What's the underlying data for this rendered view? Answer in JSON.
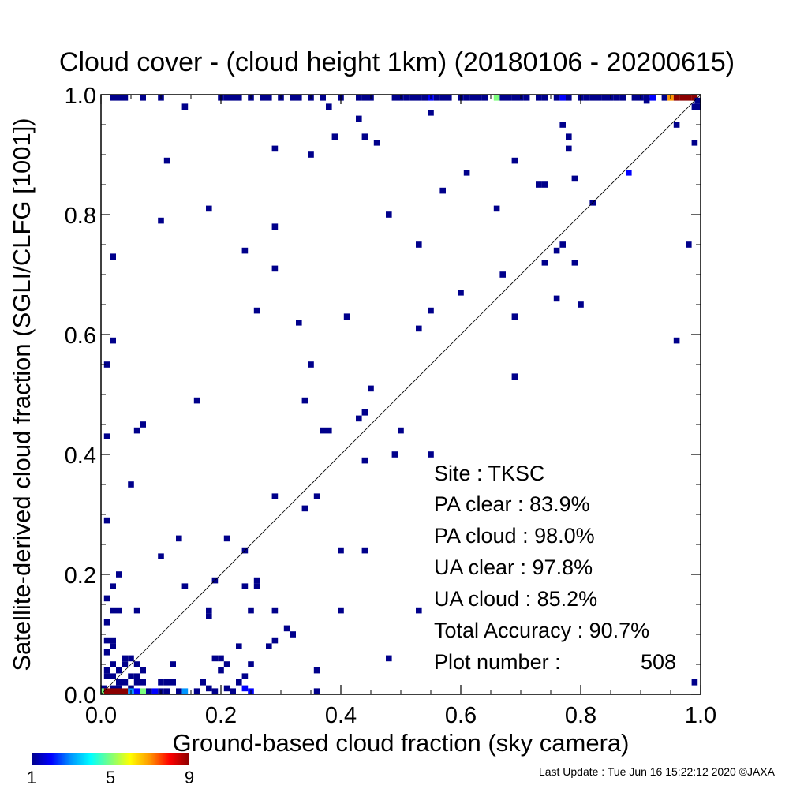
{
  "chart_data": {
    "type": "heatmap",
    "title": "Cloud cover - (cloud height 1km)  (20180106 - 20200615)",
    "xlabel": "Ground-based cloud fraction (sky camera)",
    "ylabel": "Satellite-derived cloud fraction (SGLI/CLFG [1001])",
    "xlim": [
      0.0,
      1.0
    ],
    "ylim": [
      0.0,
      1.0
    ],
    "xticks": [
      "0.0",
      "0.2",
      "0.4",
      "0.6",
      "0.8",
      "1.0"
    ],
    "yticks": [
      "0.0",
      "0.2",
      "0.4",
      "0.6",
      "0.8",
      "1.0"
    ],
    "tick_values": [
      0.0,
      0.2,
      0.4,
      0.6,
      0.8,
      1.0
    ],
    "bin_size": 0.01,
    "reference_line": "y = x",
    "grid": false,
    "colorbar": {
      "min": 1,
      "max": 9,
      "tick_labels": [
        "1",
        "5",
        "9"
      ],
      "tick_values": [
        1,
        5,
        9
      ],
      "colors": [
        "#00008b",
        "#0000ff",
        "#0096ff",
        "#00ffff",
        "#7dff7d",
        "#ffff00",
        "#ff9600",
        "#ff0000",
        "#8b0000"
      ]
    },
    "cells": [
      [
        0.02,
        1.0,
        1
      ],
      [
        0.03,
        1.0,
        1
      ],
      [
        0.04,
        1.0,
        1
      ],
      [
        0.07,
        1.0,
        1
      ],
      [
        0.1,
        1.0,
        1
      ],
      [
        0.2,
        1.0,
        1
      ],
      [
        0.21,
        1.0,
        1
      ],
      [
        0.22,
        1.0,
        1
      ],
      [
        0.23,
        1.0,
        1
      ],
      [
        0.25,
        1.0,
        1
      ],
      [
        0.27,
        1.0,
        1
      ],
      [
        0.28,
        1.0,
        1
      ],
      [
        0.3,
        1.0,
        1
      ],
      [
        0.32,
        1.0,
        1
      ],
      [
        0.33,
        1.0,
        1
      ],
      [
        0.35,
        1.0,
        1
      ],
      [
        0.37,
        1.0,
        1
      ],
      [
        0.4,
        1.0,
        1
      ],
      [
        0.43,
        1.0,
        1
      ],
      [
        0.44,
        1.0,
        1
      ],
      [
        0.45,
        1.0,
        1
      ],
      [
        0.49,
        1.0,
        1
      ],
      [
        0.5,
        1.0,
        1
      ],
      [
        0.51,
        1.0,
        1
      ],
      [
        0.52,
        1.0,
        1
      ],
      [
        0.53,
        1.0,
        1
      ],
      [
        0.54,
        1.0,
        1
      ],
      [
        0.55,
        1.0,
        2
      ],
      [
        0.56,
        1.0,
        1
      ],
      [
        0.57,
        1.0,
        1
      ],
      [
        0.58,
        1.0,
        1
      ],
      [
        0.6,
        1.0,
        1
      ],
      [
        0.61,
        1.0,
        1
      ],
      [
        0.62,
        1.0,
        1
      ],
      [
        0.63,
        1.0,
        1
      ],
      [
        0.64,
        1.0,
        1
      ],
      [
        0.66,
        1.0,
        5
      ],
      [
        0.67,
        1.0,
        1
      ],
      [
        0.68,
        1.0,
        1
      ],
      [
        0.69,
        1.0,
        1
      ],
      [
        0.7,
        1.0,
        1
      ],
      [
        0.71,
        1.0,
        1
      ],
      [
        0.73,
        1.0,
        1
      ],
      [
        0.74,
        1.0,
        1
      ],
      [
        0.76,
        1.0,
        1
      ],
      [
        0.77,
        1.0,
        2
      ],
      [
        0.78,
        1.0,
        1
      ],
      [
        0.8,
        1.0,
        1
      ],
      [
        0.81,
        1.0,
        1
      ],
      [
        0.82,
        1.0,
        1
      ],
      [
        0.83,
        1.0,
        1
      ],
      [
        0.84,
        1.0,
        1
      ],
      [
        0.85,
        1.0,
        1
      ],
      [
        0.86,
        1.0,
        1
      ],
      [
        0.87,
        1.0,
        1
      ],
      [
        0.89,
        1.0,
        1
      ],
      [
        0.9,
        1.0,
        1
      ],
      [
        0.91,
        1.0,
        1
      ],
      [
        0.92,
        1.0,
        2
      ],
      [
        0.94,
        1.0,
        1
      ],
      [
        0.95,
        1.0,
        7
      ],
      [
        0.96,
        1.0,
        9
      ],
      [
        0.97,
        1.0,
        9
      ],
      [
        0.98,
        1.0,
        9
      ],
      [
        0.99,
        1.0,
        9
      ],
      [
        1.0,
        0.99,
        1
      ],
      [
        0.99,
        0.98,
        1
      ],
      [
        1.0,
        0.98,
        1
      ],
      [
        0.91,
        0.99,
        1
      ],
      [
        0.14,
        0.98,
        1
      ],
      [
        0.38,
        0.98,
        1
      ],
      [
        0.55,
        0.97,
        1
      ],
      [
        0.43,
        0.96,
        1
      ],
      [
        0.96,
        0.95,
        1
      ],
      [
        0.77,
        0.95,
        1
      ],
      [
        0.39,
        0.93,
        1
      ],
      [
        0.44,
        0.93,
        1
      ],
      [
        0.46,
        0.92,
        1
      ],
      [
        0.78,
        0.93,
        1
      ],
      [
        0.99,
        0.92,
        1
      ],
      [
        0.29,
        0.91,
        1
      ],
      [
        0.78,
        0.91,
        1
      ],
      [
        0.35,
        0.9,
        1
      ],
      [
        0.11,
        0.89,
        1
      ],
      [
        0.69,
        0.89,
        1
      ],
      [
        0.61,
        0.87,
        1
      ],
      [
        0.88,
        0.87,
        2
      ],
      [
        0.79,
        0.86,
        1
      ],
      [
        0.73,
        0.85,
        1
      ],
      [
        0.74,
        0.85,
        1
      ],
      [
        0.57,
        0.84,
        1
      ],
      [
        0.82,
        0.82,
        1
      ],
      [
        0.18,
        0.81,
        1
      ],
      [
        0.66,
        0.81,
        1
      ],
      [
        0.48,
        0.8,
        1
      ],
      [
        0.1,
        0.79,
        1
      ],
      [
        0.29,
        0.78,
        1
      ],
      [
        0.53,
        0.75,
        1
      ],
      [
        0.77,
        0.75,
        1
      ],
      [
        0.98,
        0.75,
        1
      ],
      [
        0.24,
        0.74,
        1
      ],
      [
        0.76,
        0.74,
        1
      ],
      [
        0.02,
        0.73,
        1
      ],
      [
        0.74,
        0.72,
        1
      ],
      [
        0.79,
        0.72,
        1
      ],
      [
        0.29,
        0.71,
        1
      ],
      [
        0.67,
        0.7,
        1
      ],
      [
        0.6,
        0.67,
        1
      ],
      [
        0.76,
        0.66,
        1
      ],
      [
        0.8,
        0.65,
        1
      ],
      [
        0.26,
        0.64,
        1
      ],
      [
        0.55,
        0.64,
        1
      ],
      [
        0.41,
        0.63,
        1
      ],
      [
        0.69,
        0.63,
        1
      ],
      [
        0.33,
        0.62,
        1
      ],
      [
        0.53,
        0.61,
        1
      ],
      [
        0.02,
        0.59,
        1
      ],
      [
        0.96,
        0.59,
        1
      ],
      [
        0.01,
        0.55,
        1
      ],
      [
        0.35,
        0.55,
        1
      ],
      [
        0.69,
        0.53,
        1
      ],
      [
        0.45,
        0.51,
        1
      ],
      [
        0.16,
        0.49,
        1
      ],
      [
        0.34,
        0.49,
        1
      ],
      [
        0.44,
        0.47,
        1
      ],
      [
        0.43,
        0.46,
        1
      ],
      [
        0.07,
        0.45,
        1
      ],
      [
        0.06,
        0.44,
        1
      ],
      [
        0.37,
        0.44,
        1
      ],
      [
        0.38,
        0.44,
        1
      ],
      [
        0.5,
        0.44,
        1
      ],
      [
        0.01,
        0.43,
        1
      ],
      [
        0.49,
        0.4,
        1
      ],
      [
        0.55,
        0.4,
        1
      ],
      [
        0.44,
        0.39,
        1
      ],
      [
        0.05,
        0.35,
        1
      ],
      [
        0.29,
        0.33,
        1
      ],
      [
        0.36,
        0.33,
        1
      ],
      [
        0.34,
        0.31,
        1
      ],
      [
        0.01,
        0.29,
        1
      ],
      [
        0.13,
        0.26,
        1
      ],
      [
        0.21,
        0.26,
        1
      ],
      [
        0.24,
        0.24,
        1
      ],
      [
        0.4,
        0.24,
        1
      ],
      [
        0.44,
        0.24,
        1
      ],
      [
        0.1,
        0.23,
        1
      ],
      [
        0.03,
        0.2,
        1
      ],
      [
        0.19,
        0.19,
        1
      ],
      [
        0.26,
        0.19,
        1
      ],
      [
        0.02,
        0.18,
        1
      ],
      [
        0.14,
        0.18,
        1
      ],
      [
        0.24,
        0.18,
        1
      ],
      [
        0.26,
        0.18,
        1
      ],
      [
        0.01,
        0.16,
        1
      ],
      [
        0.02,
        0.14,
        1
      ],
      [
        0.03,
        0.14,
        1
      ],
      [
        0.06,
        0.14,
        1
      ],
      [
        0.18,
        0.14,
        1
      ],
      [
        0.25,
        0.14,
        1
      ],
      [
        0.29,
        0.14,
        1
      ],
      [
        0.4,
        0.14,
        1
      ],
      [
        0.53,
        0.14,
        1
      ],
      [
        0.18,
        0.13,
        1
      ],
      [
        0.01,
        0.12,
        1
      ],
      [
        0.31,
        0.11,
        1
      ],
      [
        0.32,
        0.1,
        1
      ],
      [
        0.01,
        0.09,
        1
      ],
      [
        0.02,
        0.09,
        1
      ],
      [
        0.29,
        0.09,
        1
      ],
      [
        0.02,
        0.08,
        1
      ],
      [
        0.23,
        0.08,
        1
      ],
      [
        0.28,
        0.08,
        1
      ],
      [
        0.01,
        0.07,
        1
      ],
      [
        0.04,
        0.06,
        1
      ],
      [
        0.05,
        0.06,
        1
      ],
      [
        0.06,
        0.05,
        1
      ],
      [
        0.12,
        0.05,
        1
      ],
      [
        0.19,
        0.06,
        1
      ],
      [
        0.2,
        0.06,
        1
      ],
      [
        0.21,
        0.05,
        1
      ],
      [
        0.25,
        0.05,
        1
      ],
      [
        0.48,
        0.06,
        1
      ],
      [
        0.02,
        0.05,
        1
      ],
      [
        0.04,
        0.05,
        1
      ],
      [
        0.07,
        0.04,
        1
      ],
      [
        0.01,
        0.04,
        1
      ],
      [
        0.03,
        0.04,
        1
      ],
      [
        0.06,
        0.03,
        1
      ],
      [
        0.2,
        0.04,
        1
      ],
      [
        0.36,
        0.04,
        1
      ],
      [
        0.24,
        0.03,
        1
      ],
      [
        0.02,
        0.03,
        1
      ],
      [
        0.05,
        0.03,
        1
      ],
      [
        0.01,
        0.03,
        1
      ],
      [
        0.04,
        0.02,
        1
      ],
      [
        0.07,
        0.02,
        1
      ],
      [
        0.1,
        0.02,
        1
      ],
      [
        0.11,
        0.02,
        1
      ],
      [
        0.12,
        0.02,
        1
      ],
      [
        0.03,
        0.02,
        1
      ],
      [
        0.06,
        0.02,
        1
      ],
      [
        0.17,
        0.02,
        1
      ],
      [
        0.23,
        0.02,
        1
      ],
      [
        0.03,
        0.01,
        1
      ],
      [
        0.05,
        0.01,
        1
      ],
      [
        0.0,
        0.01,
        1
      ],
      [
        0.02,
        0.01,
        1
      ],
      [
        0.18,
        0.01,
        1
      ],
      [
        0.21,
        0.01,
        1
      ],
      [
        0.24,
        0.01,
        2
      ],
      [
        0.99,
        0.02,
        1
      ],
      [
        0.0,
        0.0,
        5
      ],
      [
        0.01,
        0.0,
        9
      ],
      [
        0.02,
        0.0,
        9
      ],
      [
        0.03,
        0.0,
        9
      ],
      [
        0.04,
        0.0,
        9
      ],
      [
        0.05,
        0.0,
        3
      ],
      [
        0.06,
        0.0,
        2
      ],
      [
        0.07,
        0.0,
        5
      ],
      [
        0.08,
        0.0,
        1
      ],
      [
        0.09,
        0.0,
        2
      ],
      [
        0.1,
        0.0,
        1
      ],
      [
        0.11,
        0.0,
        1
      ],
      [
        0.13,
        0.0,
        1
      ],
      [
        0.14,
        0.0,
        3
      ],
      [
        0.16,
        0.0,
        1
      ],
      [
        0.19,
        0.0,
        1
      ],
      [
        0.22,
        0.0,
        1
      ],
      [
        0.25,
        0.0,
        2
      ],
      [
        0.36,
        0.0,
        1
      ]
    ]
  },
  "stats": {
    "site": "Site : TKSC",
    "pa_clear": "PA clear :  83.9%",
    "pa_cloud": "PA cloud :  98.0%",
    "ua_clear": "UA clear :  97.8%",
    "ua_cloud": "UA cloud :  85.2%",
    "total_accuracy": "Total Accuracy :  90.7%",
    "plot_number_label": "Plot number :",
    "plot_number_value": "508"
  },
  "footer": {
    "last_update": "Last Update : Tue Jun 16 15:22:12 2020  ©JAXA"
  }
}
